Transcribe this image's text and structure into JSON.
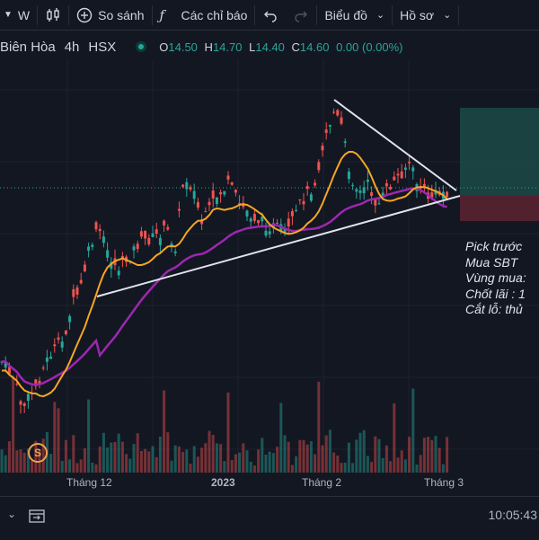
{
  "toolbar": {
    "interval_label": "W",
    "compare_label": "So sánh",
    "indicators_label": "Các chỉ báo",
    "layout_label": "Biểu đồ",
    "profile_label": "Hồ sơ"
  },
  "legend": {
    "symbol": "Biên Hòa",
    "interval": "4h",
    "exchange": "HSX",
    "o_label": "O",
    "o": "14.50",
    "h_label": "H",
    "h": "14.70",
    "l_label": "L",
    "l": "14.40",
    "c_label": "C",
    "c": "14.60",
    "change": "0.00 (0.00%)"
  },
  "note": {
    "line1": "Pick trước",
    "line2": "Mua SBT",
    "line3": "Vùng mua:",
    "line4": "Chốt lãi : 1",
    "line5": "Cắt lỗ: thủ"
  },
  "time_axis": {
    "labels": [
      "Tháng 12",
      "2023",
      "Tháng 2",
      "Tháng 3"
    ]
  },
  "event_badge": "S",
  "clock": "10:05:43",
  "colors": {
    "up": "#26a69a",
    "down": "#ef5350",
    "ma_fast": "#f5a623",
    "ma_slow": "#9c27b0",
    "trendline": "#e0e3eb",
    "background": "#131722"
  },
  "chart_data": {
    "type": "candlestick",
    "x_labels": [
      "Tháng 12",
      "2023",
      "Tháng 2",
      "Tháng 3"
    ],
    "last_close": 14.6,
    "ma_fast_color": "#f5a623",
    "ma_slow_color": "#9c27b0"
  }
}
